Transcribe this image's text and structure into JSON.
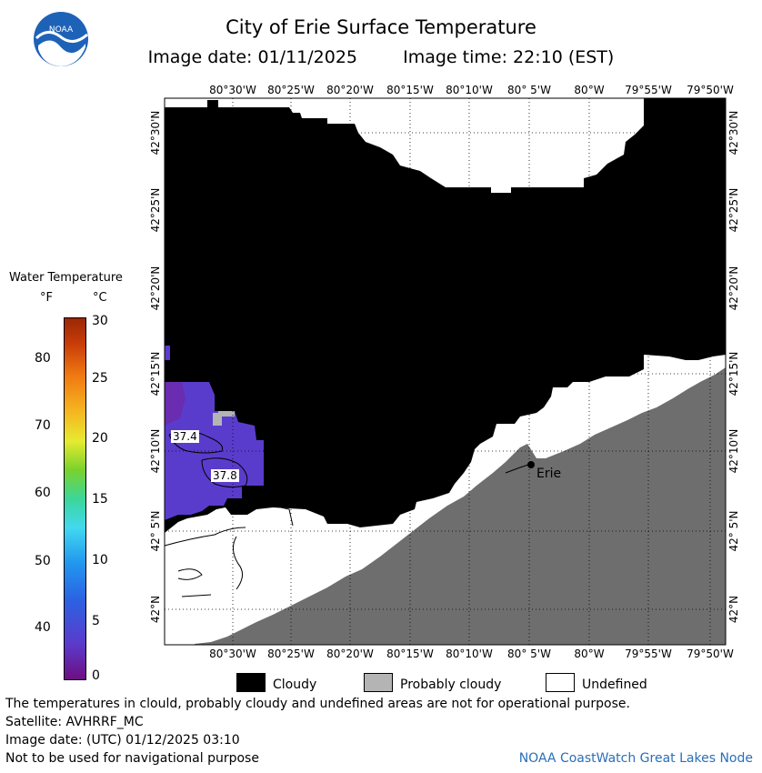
{
  "title": "City of Erie Surface Temperature",
  "image_date_label": "Image date: 01/11/2025",
  "image_time_label": "Image time: 22:10 (EST)",
  "logo_text": "NOAA",
  "colorbar": {
    "title": "Water Temperature",
    "unit_f": "°F",
    "unit_c": "°C",
    "f_ticks": [
      "80",
      "70",
      "60",
      "50",
      "40"
    ],
    "c_ticks": [
      "30",
      "25",
      "20",
      "15",
      "10",
      "5",
      "0"
    ]
  },
  "map": {
    "lon_labels": [
      "80°30'W",
      "80°25'W",
      "80°20'W",
      "80°15'W",
      "80°10'W",
      "80° 5'W",
      "80°W",
      "79°55'W",
      "79°50'W"
    ],
    "lat_labels": [
      "42°30'N",
      "42°25'N",
      "42°20'N",
      "42°15'N",
      "42°10'N",
      "42° 5'N",
      "42°N"
    ],
    "temp_labels": [
      "37.4",
      "37.8"
    ],
    "city": "Erie"
  },
  "legend": {
    "cloudy": "Cloudy",
    "probably_cloudy": "Probably cloudy",
    "undefined": "Undefined",
    "colors": {
      "cloudy": "#000000",
      "probably_cloudy": "#b4b4b4",
      "undefined": "#ffffff",
      "land": "#6e6e6e",
      "water_cold": "#5a3ccc"
    }
  },
  "notes": {
    "disclaimer": "The temperatures in clould, probably cloudy and undefined areas are not for operational purpose.",
    "satellite": "Satellite: AVHRRF_MC",
    "utc_date": "Image date: (UTC) 01/12/2025  03:10",
    "navigation": "Not to be used for navigational purpose",
    "credit": "NOAA CoastWatch Great Lakes Node"
  }
}
